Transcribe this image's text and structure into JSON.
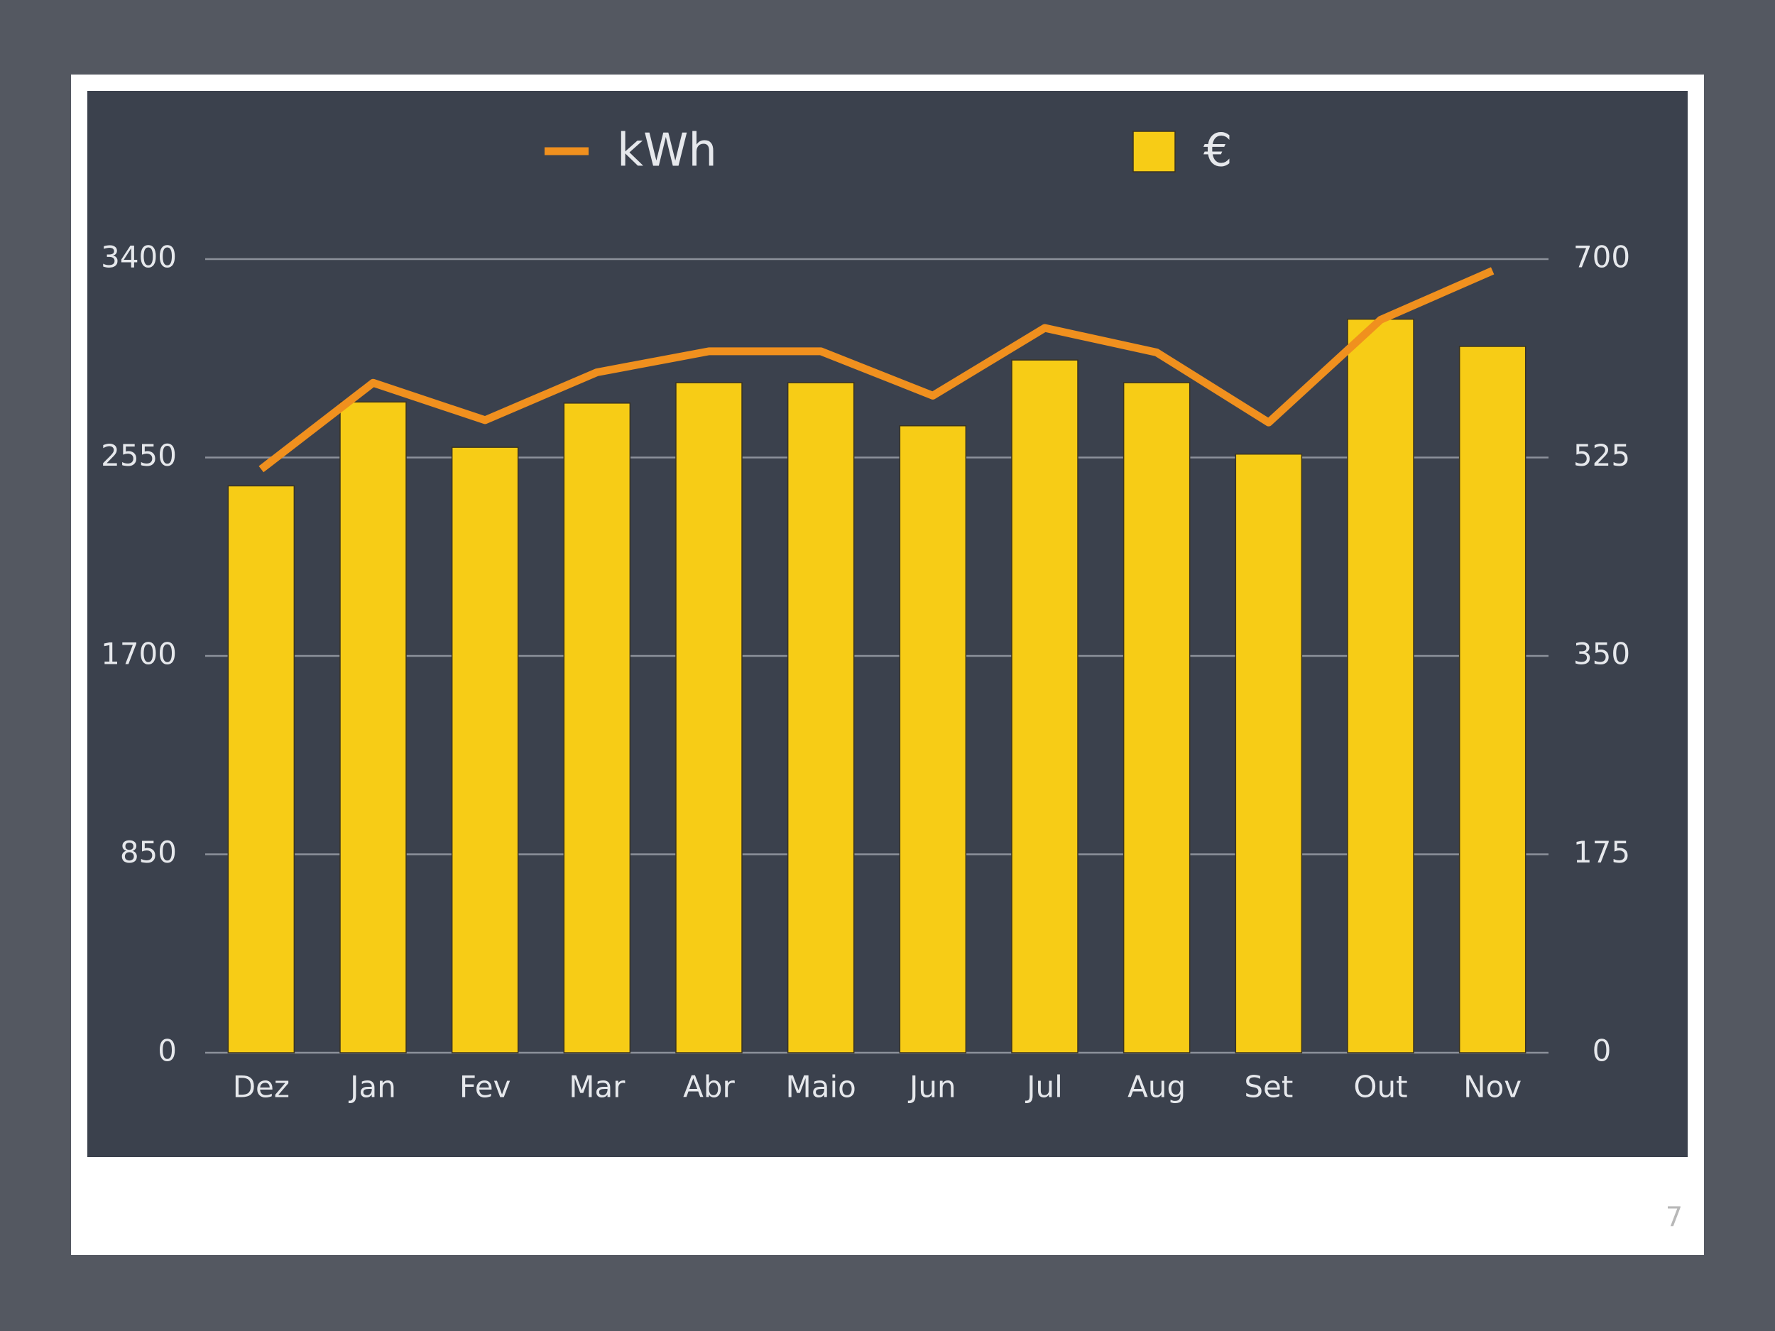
{
  "chart_data": {
    "type": "bar",
    "categories": [
      "Dez",
      "Jan",
      "Fev",
      "Mar",
      "Abr",
      "Maio",
      "Jun",
      "Jul",
      "Aug",
      "Set",
      "Out",
      "Nov"
    ],
    "series": [
      {
        "name": "kWh",
        "type": "line",
        "color": "#f0901e",
        "values": [
          2500,
          2870,
          2710,
          2915,
          3005,
          3005,
          2815,
          3105,
          3000,
          2700,
          3140,
          3350
        ]
      },
      {
        "name": "€",
        "type": "bar",
        "axis": "y2",
        "color": "#f7cc16",
        "values": [
          500,
          574,
          534,
          573,
          591,
          591,
          553,
          611,
          591,
          528,
          647,
          623
        ]
      }
    ],
    "ylim": [
      0,
      3400
    ],
    "yticks": [
      0,
      850,
      1700,
      2550,
      3400
    ],
    "y2lim": [
      0,
      700
    ],
    "y2ticks": [
      0,
      175,
      350,
      525,
      700
    ],
    "grid": true,
    "page_number": "7"
  }
}
